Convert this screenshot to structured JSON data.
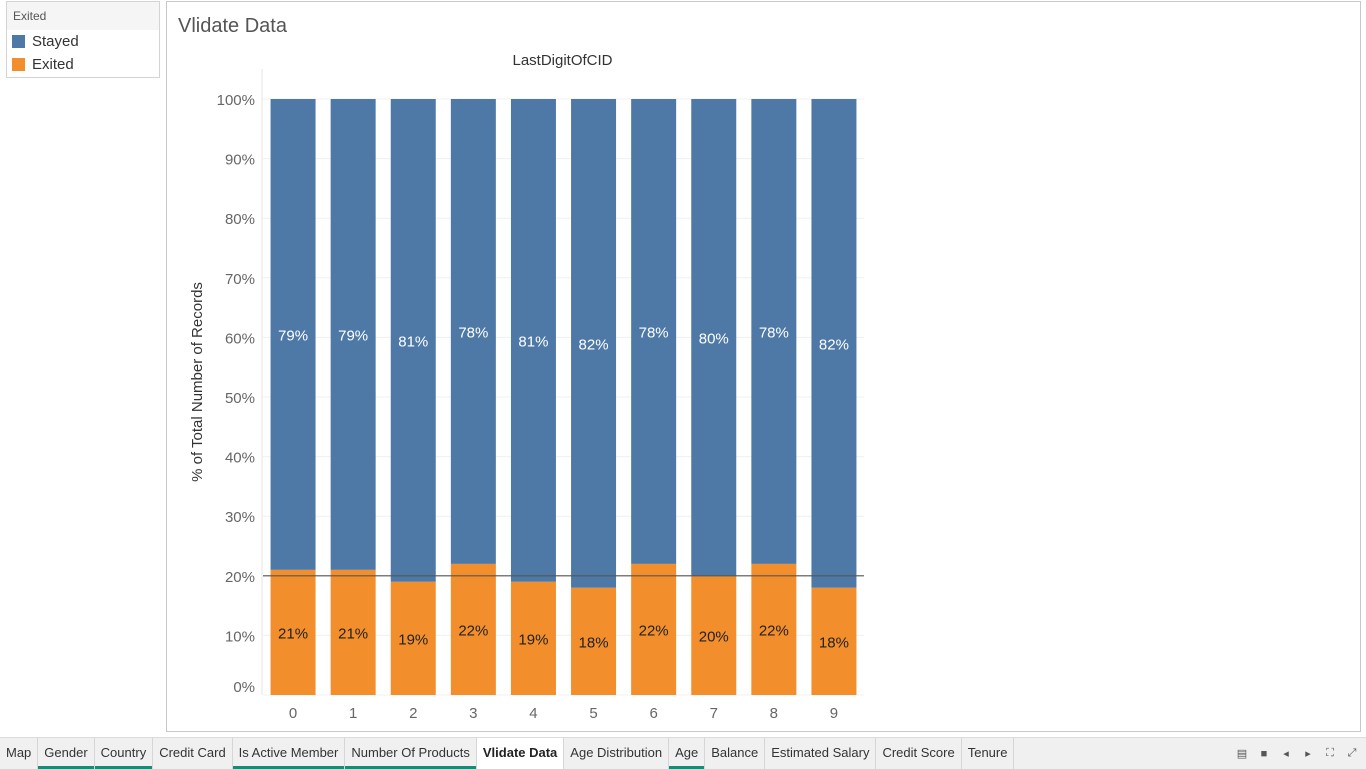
{
  "legend": {
    "title": "Exited",
    "items": [
      {
        "label": "Stayed",
        "color": "#4e79a7"
      },
      {
        "label": "Exited",
        "color": "#f28e2b"
      }
    ]
  },
  "sheet": {
    "title": "Vlidate Data"
  },
  "chart_data": {
    "type": "bar",
    "stacked": true,
    "title": "LastDigitOfCID",
    "xlabel": "",
    "ylabel": "% of Total Number of Records",
    "categories": [
      "0",
      "1",
      "2",
      "3",
      "4",
      "5",
      "6",
      "7",
      "8",
      "9"
    ],
    "series": [
      {
        "name": "Exited",
        "color": "#f28e2b",
        "values": [
          21,
          21,
          19,
          22,
          19,
          18,
          22,
          20,
          22,
          18
        ],
        "labels": [
          "21%",
          "21%",
          "19%",
          "22%",
          "19%",
          "18%",
          "22%",
          "20%",
          "22%",
          "18%"
        ]
      },
      {
        "name": "Stayed",
        "color": "#4e79a7",
        "values": [
          79,
          79,
          81,
          78,
          81,
          82,
          78,
          80,
          78,
          82
        ],
        "labels": [
          "79%",
          "79%",
          "81%",
          "78%",
          "81%",
          "82%",
          "78%",
          "80%",
          "78%",
          "82%"
        ]
      }
    ],
    "ylim": [
      0,
      100
    ],
    "yticks": [
      0,
      10,
      20,
      30,
      40,
      50,
      60,
      70,
      80,
      90,
      100
    ],
    "ytick_labels": [
      "0%",
      "10%",
      "20%",
      "30%",
      "40%",
      "50%",
      "60%",
      "70%",
      "80%",
      "90%",
      "100%"
    ],
    "reference_line": 20,
    "grid": true
  },
  "tabs": {
    "items": [
      {
        "label": "Map",
        "active": false,
        "underline": false
      },
      {
        "label": "Gender",
        "active": false,
        "underline": true
      },
      {
        "label": "Country",
        "active": false,
        "underline": true
      },
      {
        "label": "Credit Card",
        "active": false,
        "underline": false
      },
      {
        "label": "Is Active Member",
        "active": false,
        "underline": true
      },
      {
        "label": "Number Of Products",
        "active": false,
        "underline": true
      },
      {
        "label": "Vlidate Data",
        "active": true,
        "underline": false
      },
      {
        "label": "Age Distribution",
        "active": false,
        "underline": false
      },
      {
        "label": "Age",
        "active": false,
        "underline": true
      },
      {
        "label": "Balance",
        "active": false,
        "underline": false
      },
      {
        "label": "Estimated Salary",
        "active": false,
        "underline": false
      },
      {
        "label": "Credit Score",
        "active": false,
        "underline": false
      },
      {
        "label": "Tenure",
        "active": false,
        "underline": false
      }
    ],
    "controls": [
      {
        "name": "show-filmstrip-icon",
        "glyph": "▤"
      },
      {
        "name": "show-tabs-icon",
        "glyph": "■"
      },
      {
        "name": "previous-sheet-icon",
        "glyph": "◂"
      },
      {
        "name": "next-sheet-icon",
        "glyph": "▸"
      },
      {
        "name": "fit-screen-icon",
        "glyph": "⛶"
      },
      {
        "name": "fullscreen-icon",
        "glyph": "⤢"
      }
    ]
  }
}
